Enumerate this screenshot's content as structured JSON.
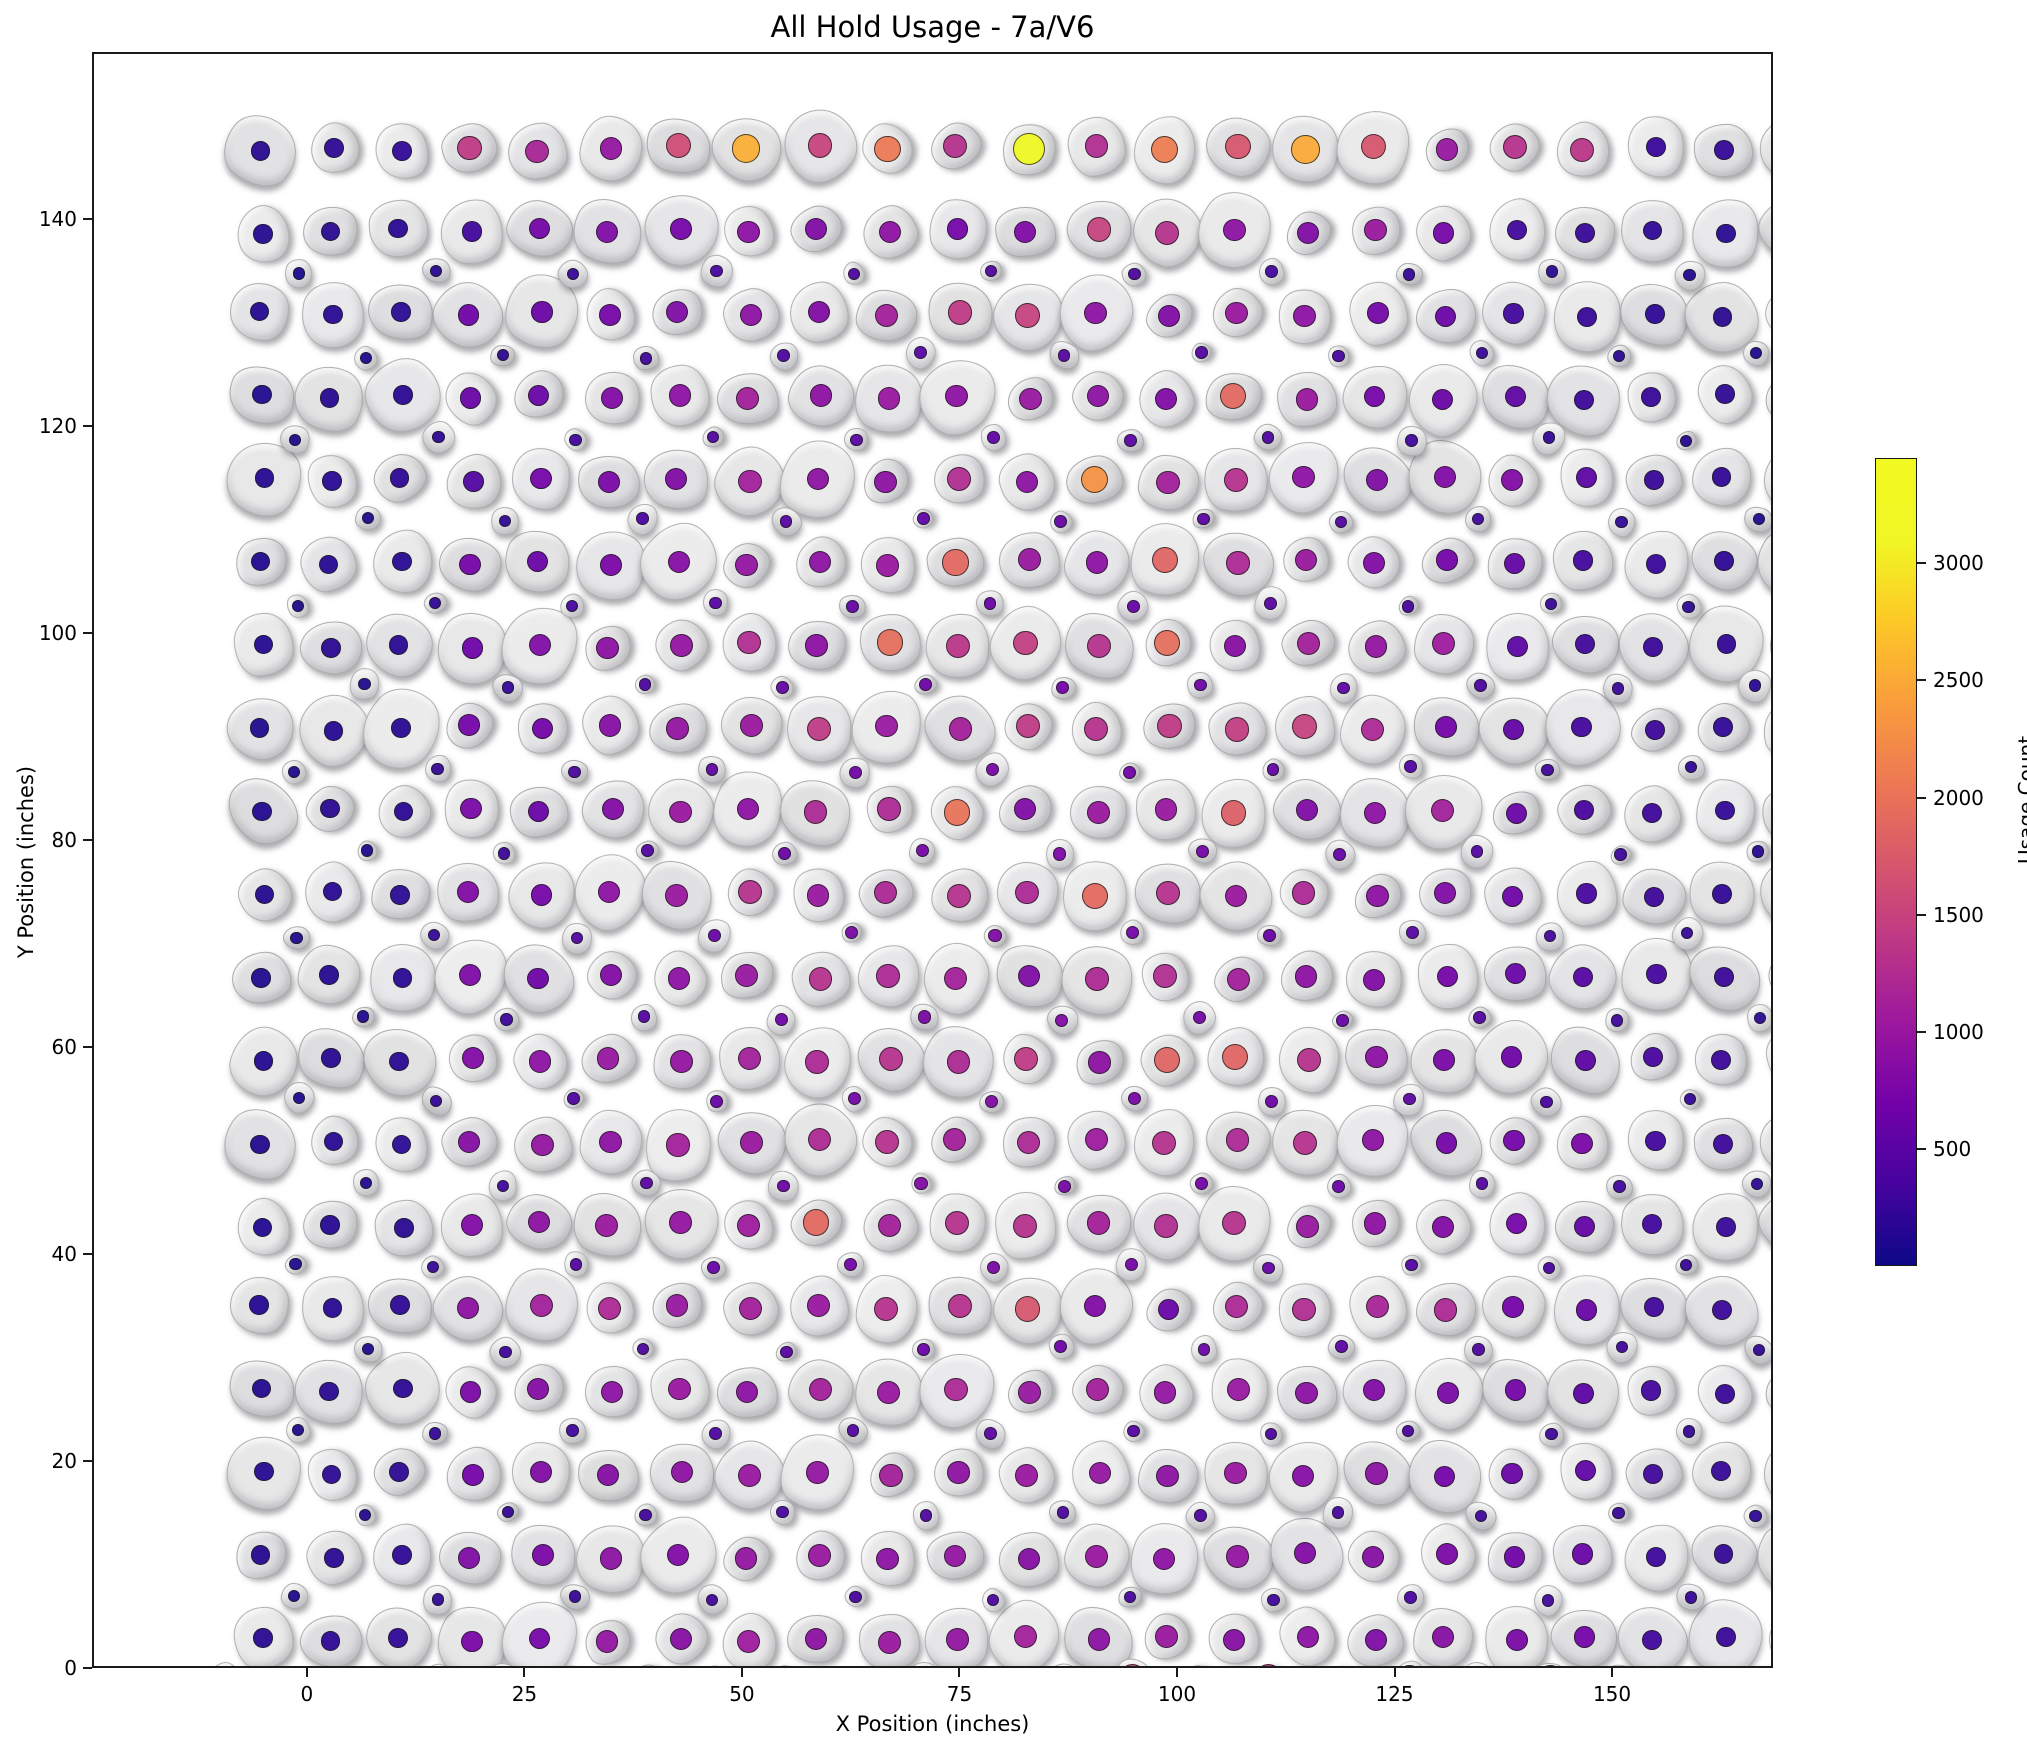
{
  "title": "All Hold Usage - 7a/V6",
  "axes": {
    "xlabel": "X Position (inches)",
    "ylabel": "Y Position (inches)",
    "x_ticks": [
      0,
      25,
      50,
      75,
      100,
      125,
      150
    ],
    "y_ticks": [
      0,
      20,
      40,
      60,
      80,
      100,
      120,
      140
    ],
    "x_range": [
      -24.7,
      168.5
    ],
    "y_range": [
      0,
      156.1
    ]
  },
  "colorbar": {
    "label": "Usage Count",
    "ticks": [
      500,
      1000,
      1500,
      2000,
      2500,
      3000
    ],
    "vmin": 0,
    "vmax": 3450,
    "colormap": "plasma"
  },
  "colors": {
    "plasma_stops": [
      "#0d0887",
      "#46039f",
      "#7201a8",
      "#9c179e",
      "#bd3786",
      "#d8576b",
      "#ed7953",
      "#fa9e3b",
      "#fdc926",
      "#f0f724",
      "#f0f921"
    ],
    "hold_gray": "#e9e9eb",
    "spine": "#1a1a1a",
    "background": "#ffffff"
  },
  "chart_data": {
    "type": "scatter",
    "title": "All Hold Usage - 7a/V6",
    "xlabel": "X Position (inches)",
    "ylabel": "Y Position (inches)",
    "legend": "colorbar: Usage Count, plasma colormap",
    "grid": false,
    "units": "inches",
    "max_point": {
      "x": 72,
      "y": 152,
      "value": 3400
    },
    "main_grid": {
      "x_start": -16,
      "x_step": 8,
      "rows": [
        {
          "y": 8,
          "values": [
            150,
            180,
            200,
            750,
            700,
            950,
            850,
            1050,
            900,
            1000,
            950,
            1100,
            900,
            1000,
            850,
            900,
            800,
            850,
            750,
            700,
            300,
            250,
            200
          ]
        },
        {
          "y": 16,
          "values": [
            130,
            160,
            180,
            800,
            750,
            900,
            800,
            950,
            1000,
            900,
            950,
            850,
            1000,
            900,
            950,
            800,
            850,
            750,
            650,
            600,
            280,
            230,
            180
          ]
        },
        {
          "y": 24,
          "values": [
            140,
            170,
            190,
            700,
            800,
            850,
            900,
            1000,
            950,
            1100,
            900,
            1000,
            950,
            900,
            1000,
            850,
            900,
            700,
            600,
            550,
            300,
            240,
            190
          ]
        },
        {
          "y": 32,
          "values": [
            120,
            150,
            170,
            750,
            850,
            900,
            1000,
            900,
            1100,
            1000,
            1200,
            1000,
            1100,
            950,
            1000,
            900,
            800,
            750,
            700,
            500,
            320,
            250,
            200
          ]
        },
        {
          "y": 40,
          "values": [
            130,
            160,
            180,
            900,
            1100,
            1200,
            1000,
            1100,
            1000,
            1300,
            1300,
            1700,
            800,
            600,
            1200,
            1250,
            1150,
            1200,
            700,
            600,
            300,
            260,
            210
          ]
        },
        {
          "y": 48,
          "values": [
            110,
            140,
            160,
            800,
            900,
            1000,
            950,
            1050,
            1900,
            1100,
            1300,
            1300,
            1100,
            1250,
            1300,
            1000,
            900,
            800,
            700,
            550,
            310,
            240,
            190
          ]
        },
        {
          "y": 56,
          "values": [
            120,
            150,
            170,
            850,
            950,
            900,
            1100,
            1000,
            1200,
            1300,
            1100,
            1200,
            1050,
            1300,
            1200,
            1300,
            900,
            700,
            700,
            750,
            300,
            280,
            250
          ]
        },
        {
          "y": 64,
          "values": [
            110,
            150,
            160,
            800,
            900,
            1000,
            950,
            1100,
            1200,
            1300,
            1200,
            1400,
            900,
            1850,
            1850,
            1300,
            900,
            750,
            650,
            500,
            350,
            270,
            200
          ]
        },
        {
          "y": 72,
          "values": [
            100,
            140,
            160,
            780,
            650,
            800,
            900,
            1000,
            1300,
            1200,
            1100,
            800,
            1200,
            1250,
            1100,
            900,
            800,
            700,
            600,
            450,
            330,
            260,
            190
          ]
        },
        {
          "y": 80,
          "values": [
            120,
            150,
            170,
            800,
            700,
            900,
            1000,
            1300,
            1000,
            1200,
            1300,
            1200,
            1900,
            1300,
            1000,
            1200,
            900,
            800,
            650,
            340,
            280,
            200,
            150
          ]
        },
        {
          "y": 88,
          "values": [
            110,
            150,
            160,
            750,
            600,
            800,
            1000,
            900,
            1200,
            1200,
            2000,
            800,
            1000,
            1000,
            1800,
            800,
            900,
            1100,
            600,
            350,
            280,
            210,
            160
          ]
        },
        {
          "y": 96,
          "values": [
            100,
            140,
            150,
            700,
            700,
            850,
            950,
            1000,
            1400,
            1000,
            1100,
            1400,
            1300,
            1400,
            1450,
            1500,
            1200,
            700,
            550,
            320,
            270,
            200,
            160
          ]
        },
        {
          "y": 104,
          "values": [
            120,
            150,
            160,
            650,
            800,
            900,
            950,
            1250,
            900,
            1950,
            1350,
            1450,
            1300,
            1950,
            850,
            1100,
            950,
            1050,
            500,
            300,
            260,
            200,
            160
          ]
        },
        {
          "y": 112,
          "values": [
            110,
            140,
            150,
            700,
            600,
            750,
            850,
            950,
            900,
            1000,
            1900,
            1000,
            900,
            1850,
            1200,
            1000,
            800,
            700,
            550,
            300,
            250,
            190,
            150
          ]
        },
        {
          "y": 120,
          "values": [
            140,
            160,
            180,
            420,
            700,
            750,
            800,
            1100,
            900,
            900,
            1250,
            900,
            2300,
            1100,
            1300,
            900,
            800,
            800,
            800,
            500,
            250,
            200,
            160
          ]
        },
        {
          "y": 128,
          "values": [
            100,
            140,
            160,
            600,
            600,
            800,
            900,
            1100,
            900,
            1000,
            900,
            1000,
            900,
            800,
            1900,
            1000,
            700,
            600,
            550,
            280,
            240,
            190,
            150
          ]
        },
        {
          "y": 136,
          "values": [
            130,
            160,
            170,
            650,
            600,
            700,
            800,
            900,
            800,
            1100,
            1400,
            1500,
            900,
            800,
            1000,
            900,
            700,
            600,
            300,
            250,
            180,
            150,
            140
          ]
        },
        {
          "y": 144,
          "values": [
            120,
            150,
            160,
            300,
            700,
            800,
            700,
            900,
            800,
            900,
            700,
            800,
            1500,
            1300,
            900,
            800,
            1000,
            700,
            300,
            250,
            200,
            150,
            130
          ]
        },
        {
          "y": 152,
          "values": [
            150,
            180,
            200,
            1400,
            1150,
            950,
            1600,
            2550,
            1500,
            2050,
            1300,
            3400,
            1250,
            2100,
            1700,
            2500,
            1700,
            1000,
            1300,
            1350,
            250,
            220,
            180
          ]
        }
      ]
    },
    "kick_row": {
      "y": 4,
      "x_start": 4,
      "x_step": 8,
      "values": [
        1500,
        850,
        1050,
        1200,
        1250,
        1500,
        1450,
        1550,
        1500,
        1400,
        1550,
        1500,
        1450,
        1600,
        900,
        1450,
        800,
        1350
      ]
    },
    "footholds": {
      "x_step": 16,
      "rows": [
        {
          "y": 4,
          "xs": [
            -20,
            -12,
            -4,
            148,
            156,
            164
          ],
          "values": [
            150,
            180,
            160,
            200,
            180,
            150
          ]
        },
        {
          "y": 12,
          "x_start": -12,
          "values": [
            100,
            200,
            250,
            300,
            350,
            400,
            350,
            300,
            350,
            300,
            250,
            150
          ]
        },
        {
          "y": 20,
          "x_start": -4,
          "values": [
            120,
            250,
            300,
            350,
            400,
            380,
            400,
            350,
            300,
            250,
            200
          ]
        },
        {
          "y": 28,
          "x_start": -12,
          "values": [
            90,
            220,
            300,
            400,
            450,
            500,
            450,
            400,
            380,
            300,
            220,
            140
          ]
        },
        {
          "y": 36,
          "x_start": -4,
          "values": [
            110,
            280,
            400,
            500,
            600,
            650,
            600,
            500,
            400,
            300,
            200
          ]
        },
        {
          "y": 44,
          "x_start": -12,
          "values": [
            100,
            250,
            450,
            600,
            700,
            750,
            700,
            600,
            450,
            350,
            250,
            150
          ]
        },
        {
          "y": 52,
          "x_start": -4,
          "values": [
            130,
            300,
            500,
            650,
            800,
            750,
            700,
            600,
            450,
            300,
            180
          ]
        },
        {
          "y": 60,
          "x_start": -12,
          "values": [
            90,
            230,
            400,
            600,
            700,
            800,
            750,
            650,
            500,
            350,
            230,
            140
          ]
        },
        {
          "y": 68,
          "x_start": -4,
          "values": [
            120,
            280,
            450,
            650,
            750,
            800,
            700,
            600,
            450,
            300,
            170
          ]
        },
        {
          "y": 76,
          "x_start": -12,
          "values": [
            100,
            240,
            420,
            600,
            750,
            800,
            700,
            600,
            480,
            340,
            220,
            130
          ]
        },
        {
          "y": 84,
          "x_start": -4,
          "values": [
            110,
            260,
            430,
            620,
            720,
            760,
            700,
            580,
            430,
            290,
            160
          ]
        },
        {
          "y": 92,
          "x_start": -12,
          "values": [
            90,
            220,
            380,
            550,
            680,
            720,
            680,
            560,
            420,
            300,
            200,
            130
          ]
        },
        {
          "y": 100,
          "x_start": -4,
          "values": [
            100,
            240,
            400,
            560,
            650,
            700,
            640,
            520,
            380,
            260,
            150
          ]
        },
        {
          "y": 108,
          "x_start": -12,
          "values": [
            80,
            200,
            340,
            480,
            580,
            620,
            580,
            470,
            350,
            250,
            170,
            110
          ]
        },
        {
          "y": 116,
          "x_start": -4,
          "values": [
            90,
            210,
            350,
            480,
            560,
            580,
            520,
            420,
            300,
            200,
            130
          ]
        },
        {
          "y": 124,
          "x_start": -12,
          "values": [
            70,
            180,
            300,
            420,
            500,
            540,
            500,
            400,
            300,
            210,
            140,
            100
          ]
        },
        {
          "y": 132,
          "x_start": -4,
          "values": [
            80,
            190,
            300,
            400,
            460,
            480,
            430,
            340,
            250,
            170,
            110
          ]
        },
        {
          "y": 140,
          "x_start": -12,
          "values": [
            60,
            150,
            250,
            340,
            400,
            430,
            400,
            320,
            240,
            160,
            110,
            80
          ]
        }
      ]
    }
  }
}
